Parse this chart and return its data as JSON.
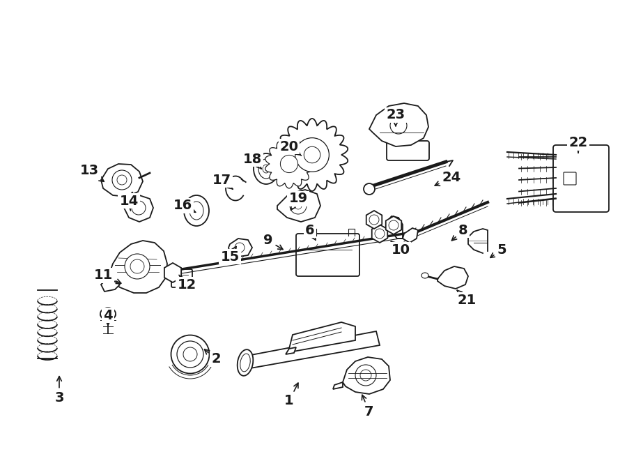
{
  "background_color": "#ffffff",
  "line_color": "#1a1a1a",
  "fig_width": 9.0,
  "fig_height": 6.61,
  "dpi": 100,
  "labels": [
    [
      "1",
      415,
      575,
      430,
      545
    ],
    [
      "2",
      310,
      515,
      290,
      498
    ],
    [
      "3",
      85,
      570,
      85,
      535
    ],
    [
      "4",
      155,
      452,
      155,
      468
    ],
    [
      "5",
      720,
      358,
      700,
      372
    ],
    [
      "6",
      445,
      330,
      455,
      348
    ],
    [
      "7",
      530,
      590,
      518,
      562
    ],
    [
      "8",
      665,
      330,
      645,
      348
    ],
    [
      "9",
      385,
      345,
      410,
      360
    ],
    [
      "10",
      575,
      358,
      560,
      345
    ],
    [
      "11",
      148,
      395,
      178,
      408
    ],
    [
      "12",
      268,
      408,
      255,
      392
    ],
    [
      "13",
      128,
      245,
      153,
      263
    ],
    [
      "14",
      185,
      288,
      188,
      305
    ],
    [
      "15",
      330,
      368,
      340,
      352
    ],
    [
      "16",
      262,
      295,
      282,
      305
    ],
    [
      "17",
      318,
      258,
      335,
      272
    ],
    [
      "18",
      362,
      228,
      378,
      245
    ],
    [
      "19",
      428,
      285,
      415,
      305
    ],
    [
      "20",
      415,
      210,
      435,
      225
    ],
    [
      "21",
      670,
      430,
      653,
      413
    ],
    [
      "22",
      830,
      205,
      830,
      222
    ],
    [
      "23",
      568,
      165,
      568,
      185
    ],
    [
      "24",
      648,
      255,
      620,
      268
    ]
  ]
}
